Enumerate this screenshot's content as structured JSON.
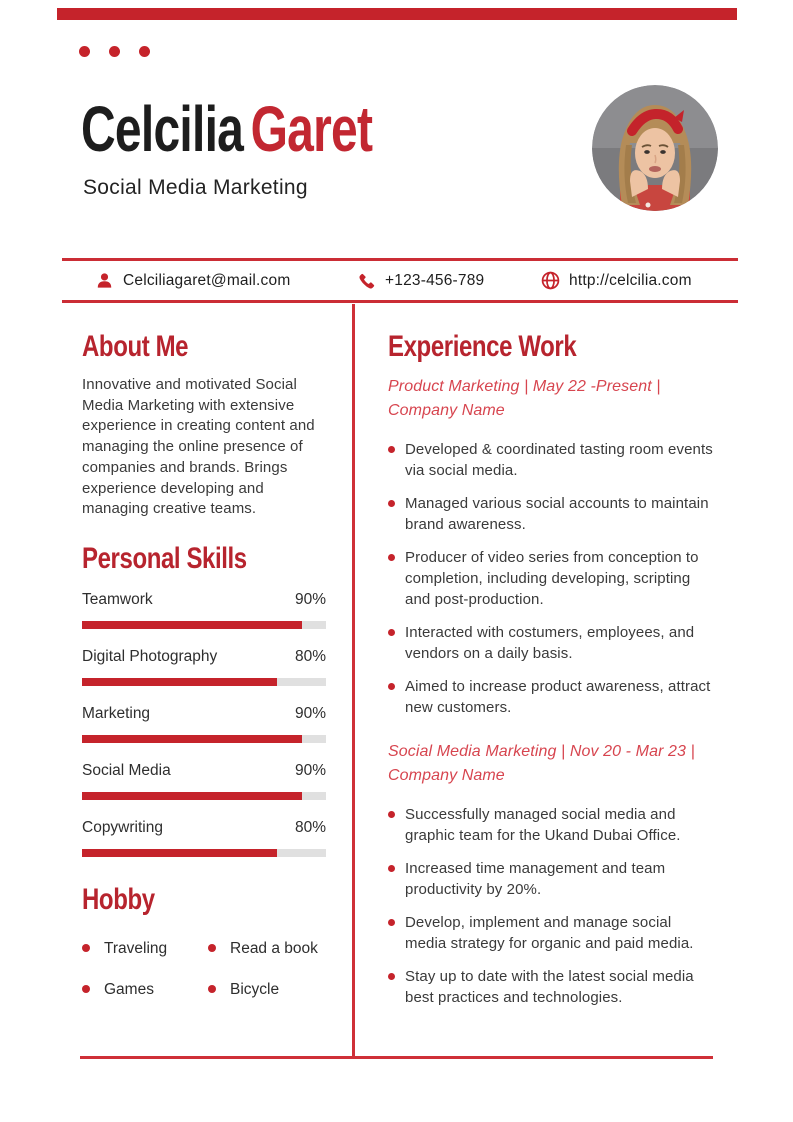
{
  "page": {
    "accent_color": "#c5232b",
    "heading_color": "#b7242e",
    "job_title_color": "#d7454f",
    "name_first": "Celcilia",
    "name_last": "Garet",
    "subtitle": "Social Media Marketing",
    "photo": "portrait of woman with red headband, gray background"
  },
  "contact": {
    "email": {
      "icon": "user-icon",
      "label": "Celciliagaret@mail.com"
    },
    "phone": {
      "icon": "phone-icon",
      "label": "+123-456-789"
    },
    "website": {
      "icon": "globe-icon",
      "label": "http://celcilia.com"
    }
  },
  "about": {
    "heading": "About Me",
    "text": "Innovative and motivated Social Media Marketing with extensive experience in creating content and managing the online presence of companies and brands. Brings experience developing and managing creative teams."
  },
  "skills": {
    "heading": "Personal Skills",
    "items": [
      {
        "label": "Teamwork",
        "value": "90%",
        "percent": 90
      },
      {
        "label": "Digital Photography",
        "value": "80%",
        "percent": 80
      },
      {
        "label": "Marketing",
        "value": "90%",
        "percent": 90
      },
      {
        "label": "Social Media",
        "value": "90%",
        "percent": 90
      },
      {
        "label": "Copywriting",
        "value": "80%",
        "percent": 80
      }
    ]
  },
  "hobby": {
    "heading": "Hobby",
    "items": [
      "Traveling",
      "Read a book",
      "Games",
      "Bicycle"
    ]
  },
  "experience": {
    "heading": "Experience Work",
    "jobs": [
      {
        "title": "Product Marketing | May 22 -Present |\nCompany Name",
        "bullets": [
          "Developed & coordinated tasting room events via social media.",
          "Managed various social accounts to maintain brand awareness.",
          "Producer of video series from conception to completion, including developing, scripting and post-production.",
          "Interacted with costumers, employees, and vendors on a daily basis.",
          "Aimed to increase product awareness, attract new customers."
        ]
      },
      {
        "title": "Social Media Marketing | Nov 20 - Mar 23 |\nCompany Name",
        "bullets": [
          "Successfully managed social media and graphic team for the Ukand Dubai Office.",
          "Increased time management and team productivity by 20%.",
          "Develop, implement and manage social media strategy for organic and paid media.",
          "Stay up to date with the latest social media best practices and technologies."
        ]
      }
    ]
  }
}
